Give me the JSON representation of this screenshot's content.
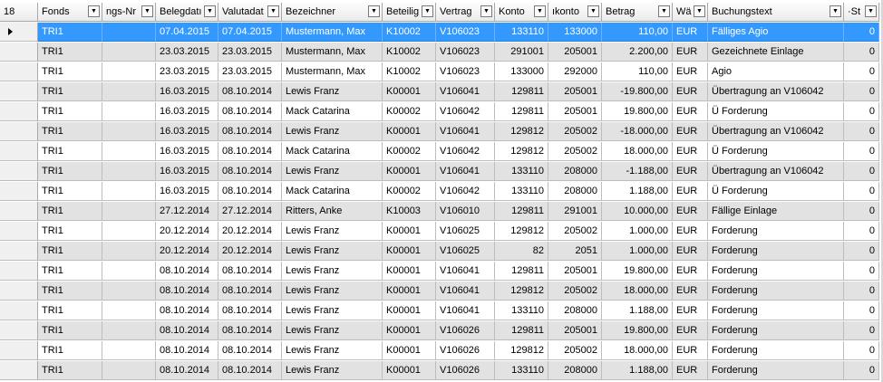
{
  "grid": {
    "row_count": "18",
    "columns": [
      {
        "id": "fonds",
        "label": "Fonds"
      },
      {
        "id": "buchungsnr",
        "label": "ngs-Nr"
      },
      {
        "id": "belegdatum",
        "label": "Belegdatı"
      },
      {
        "id": "valutadatum",
        "label": "Valutadat"
      },
      {
        "id": "bezeichner",
        "label": "Bezeichner"
      },
      {
        "id": "beteiligung",
        "label": "Beteilig"
      },
      {
        "id": "vertrag",
        "label": "Vertrag"
      },
      {
        "id": "konto",
        "label": "Konto"
      },
      {
        "id": "gegenkonto",
        "label": "ıkonto"
      },
      {
        "id": "betrag",
        "label": "Betrag"
      },
      {
        "id": "waehrung",
        "label": "Wä"
      },
      {
        "id": "buchungstext",
        "label": "Buchungstext"
      },
      {
        "id": "storno",
        "label": "·St"
      }
    ],
    "selected_row": 0,
    "rows": [
      [
        "TRI1",
        "",
        "07.04.2015",
        "07.04.2015",
        "Mustermann, Max",
        "K10002",
        "V106023",
        "133110",
        "133000",
        "110,00",
        "EUR",
        "Fälliges Agio",
        "0"
      ],
      [
        "TRI1",
        "",
        "23.03.2015",
        "23.03.2015",
        "Mustermann, Max",
        "K10002",
        "V106023",
        "291001",
        "205001",
        "2.200,00",
        "EUR",
        "Gezeichnete Einlage",
        "0"
      ],
      [
        "TRI1",
        "",
        "23.03.2015",
        "23.03.2015",
        "Mustermann, Max",
        "K10002",
        "V106023",
        "133000",
        "292000",
        "110,00",
        "EUR",
        "Agio",
        "0"
      ],
      [
        "TRI1",
        "",
        "16.03.2015",
        "08.10.2014",
        "Lewis Franz",
        "K00001",
        "V106041",
        "129811",
        "205001",
        "-19.800,00",
        "EUR",
        "Übertragung an V106042",
        "0"
      ],
      [
        "TRI1",
        "",
        "16.03.2015",
        "08.10.2014",
        "Mack Catarina",
        "K00002",
        "V106042",
        "129811",
        "205001",
        "19.800,00",
        "EUR",
        "Ü Forderung",
        "0"
      ],
      [
        "TRI1",
        "",
        "16.03.2015",
        "08.10.2014",
        "Lewis Franz",
        "K00001",
        "V106041",
        "129812",
        "205002",
        "-18.000,00",
        "EUR",
        "Übertragung an V106042",
        "0"
      ],
      [
        "TRI1",
        "",
        "16.03.2015",
        "08.10.2014",
        "Mack Catarina",
        "K00002",
        "V106042",
        "129812",
        "205002",
        "18.000,00",
        "EUR",
        "Ü Forderung",
        "0"
      ],
      [
        "TRI1",
        "",
        "16.03.2015",
        "08.10.2014",
        "Lewis Franz",
        "K00001",
        "V106041",
        "133110",
        "208000",
        "-1.188,00",
        "EUR",
        "Übertragung an V106042",
        "0"
      ],
      [
        "TRI1",
        "",
        "16.03.2015",
        "08.10.2014",
        "Mack Catarina",
        "K00002",
        "V106042",
        "133110",
        "208000",
        "1.188,00",
        "EUR",
        "Ü Forderung",
        "0"
      ],
      [
        "TRI1",
        "",
        "27.12.2014",
        "27.12.2014",
        "Ritters, Anke",
        "K10003",
        "V106010",
        "129811",
        "291001",
        "10.000,00",
        "EUR",
        "Fällige Einlage",
        "0"
      ],
      [
        "TRI1",
        "",
        "20.12.2014",
        "20.12.2014",
        "Lewis Franz",
        "K00001",
        "V106025",
        "129812",
        "205002",
        "1.000,00",
        "EUR",
        "Forderung",
        "0"
      ],
      [
        "TRI1",
        "",
        "20.12.2014",
        "20.12.2014",
        "Lewis Franz",
        "K00001",
        "V106025",
        "82",
        "2051",
        "1.000,00",
        "EUR",
        "Forderung",
        "0"
      ],
      [
        "TRI1",
        "",
        "08.10.2014",
        "08.10.2014",
        "Lewis Franz",
        "K00001",
        "V106041",
        "129811",
        "205001",
        "19.800,00",
        "EUR",
        "Forderung",
        "0"
      ],
      [
        "TRI1",
        "",
        "08.10.2014",
        "08.10.2014",
        "Lewis Franz",
        "K00001",
        "V106041",
        "129812",
        "205002",
        "18.000,00",
        "EUR",
        "Forderung",
        "0"
      ],
      [
        "TRI1",
        "",
        "08.10.2014",
        "08.10.2014",
        "Lewis Franz",
        "K00001",
        "V106041",
        "133110",
        "208000",
        "1.188,00",
        "EUR",
        "Forderung",
        "0"
      ],
      [
        "TRI1",
        "",
        "08.10.2014",
        "08.10.2014",
        "Lewis Franz",
        "K00001",
        "V106026",
        "129811",
        "205001",
        "19.800,00",
        "EUR",
        "Forderung",
        "0"
      ],
      [
        "TRI1",
        "",
        "08.10.2014",
        "08.10.2014",
        "Lewis Franz",
        "K00001",
        "V106026",
        "129812",
        "205002",
        "18.000,00",
        "EUR",
        "Forderung",
        "0"
      ],
      [
        "TRI1",
        "",
        "08.10.2014",
        "08.10.2014",
        "Lewis Franz",
        "K00001",
        "V106026",
        "133110",
        "208000",
        "1.188,00",
        "EUR",
        "Forderung",
        "0"
      ]
    ]
  },
  "icons": {
    "dropdown": "dropdown-arrow-icon",
    "row_pointer": "current-row-arrow-icon"
  },
  "colors": {
    "selection": "#3399ff",
    "alt_row": "#e2e2e2",
    "header": "#f3f3f3"
  }
}
